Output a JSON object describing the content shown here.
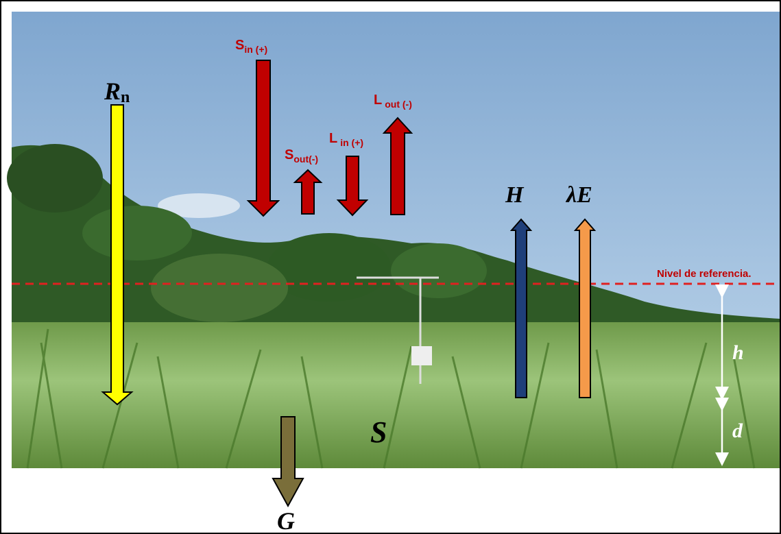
{
  "labels": {
    "rn": {
      "main": "R",
      "sub": "n"
    },
    "s_in": {
      "main": "S",
      "sub": "in (+)"
    },
    "s_out": {
      "main": "S",
      "sub": "out(-)"
    },
    "l_in": {
      "main": "L",
      "sub": "in (+)"
    },
    "l_out": {
      "main": "L",
      "sub": "out (-)"
    },
    "h_flux": "H",
    "le_flux": "λE",
    "reference": "Nivel de referencia.",
    "h_height": "h",
    "d_height": "d",
    "storage": "S",
    "ground": "G"
  }
}
